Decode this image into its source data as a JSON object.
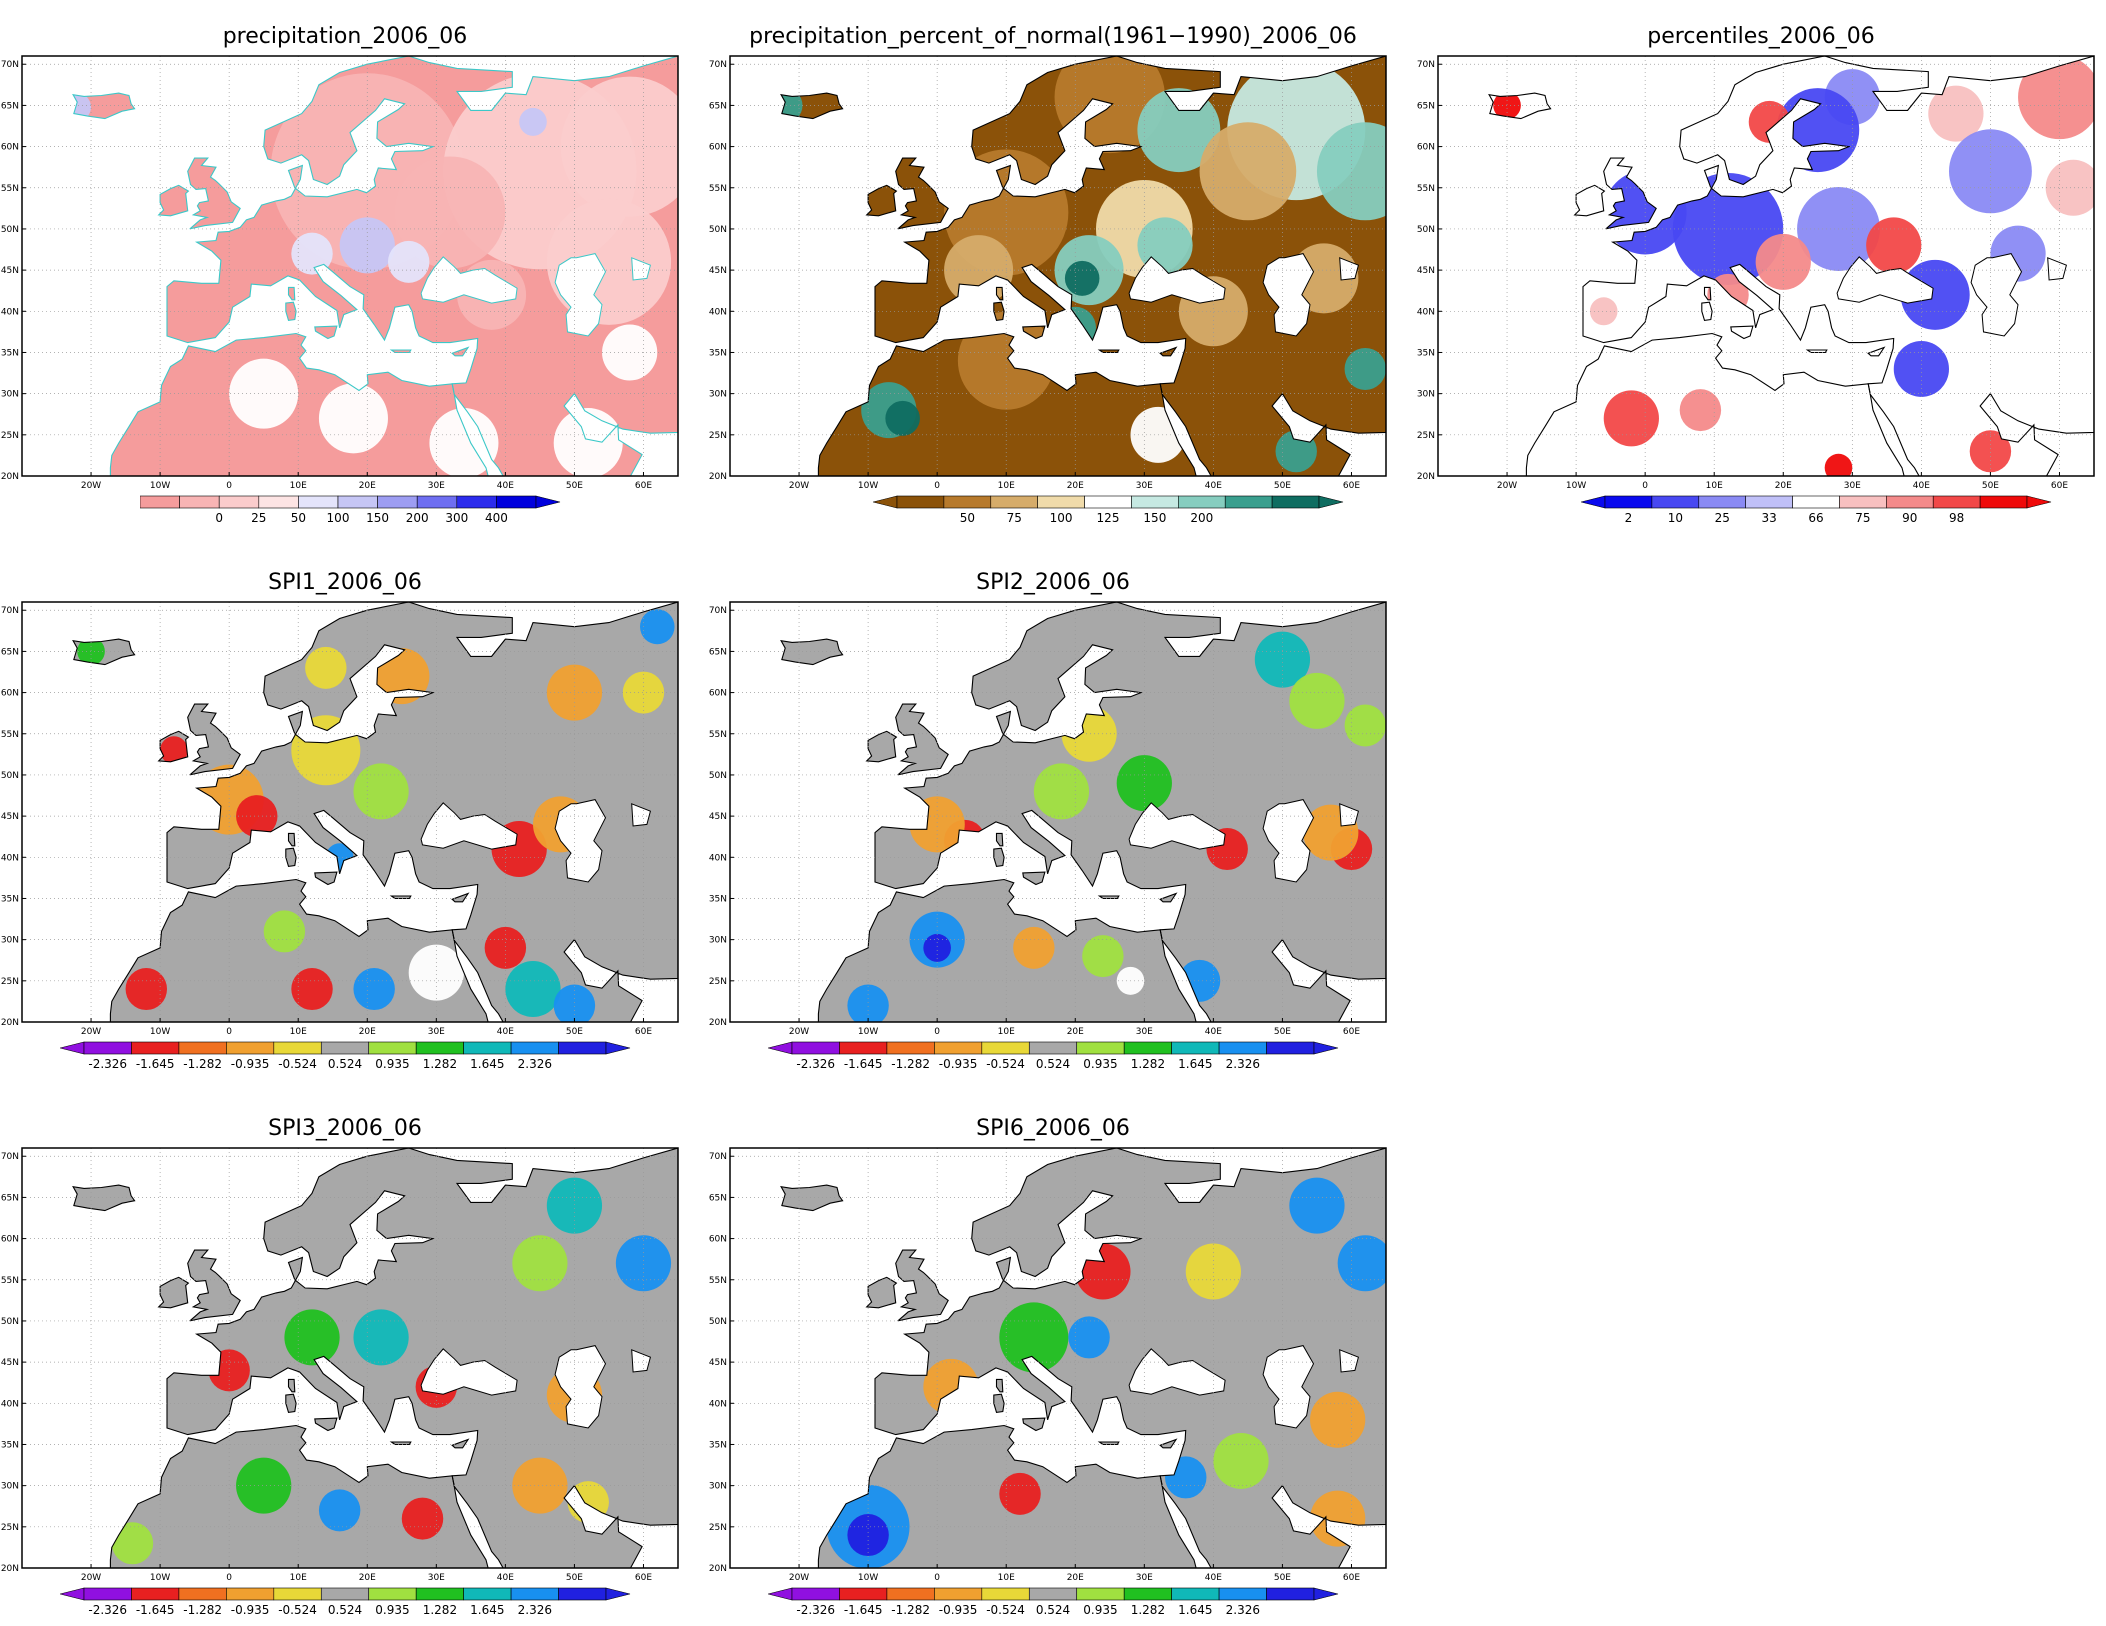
{
  "map_extent": {
    "lon": [
      -30,
      65
    ],
    "lat": [
      20,
      71
    ]
  },
  "lat_ticks": [
    "20N",
    "25N",
    "30N",
    "35N",
    "40N",
    "45N",
    "50N",
    "55N",
    "60N",
    "65N",
    "70N"
  ],
  "lon_ticks": [
    "20W",
    "10W",
    "0",
    "10E",
    "20E",
    "30E",
    "40E",
    "50E",
    "60E"
  ],
  "scales": {
    "precip": {
      "colors": [
        "#f59c9c",
        "#f8b4b4",
        "#fbcccc",
        "#fde4e4",
        "#e4e4fb",
        "#c6c6f5",
        "#9d9df2",
        "#6e6ef1",
        "#2c2ced",
        "#0000dd"
      ],
      "labels": [
        "0",
        "25",
        "50",
        "100",
        "150",
        "200",
        "300",
        "400"
      ],
      "left_arrow": false,
      "right_arrow": true
    },
    "pct": {
      "colors": [
        "#8b5209",
        "#b77a2c",
        "#d6ac6a",
        "#f0dbaa",
        "#ffffff",
        "#c6e9e2",
        "#86cdbf",
        "#3a9f8e",
        "#0f6d61"
      ],
      "labels": [
        "50",
        "75",
        "100",
        "125",
        "150",
        "200"
      ],
      "left_arrow": true,
      "right_arrow": true
    },
    "perc": {
      "colors": [
        "#0a0aef",
        "#4848f2",
        "#8a8af4",
        "#c0c0f8",
        "#ffffff",
        "#f8c0c0",
        "#f48a8a",
        "#f24848",
        "#ef0a0a"
      ],
      "labels": [
        "2",
        "10",
        "25",
        "33",
        "66",
        "75",
        "90",
        "98"
      ],
      "left_arrow": true,
      "right_arrow": true
    },
    "spi": {
      "colors": [
        "#9010e0",
        "#e82020",
        "#f07020",
        "#f0a030",
        "#e8d838",
        "#a8a8a8",
        "#a0e040",
        "#20c020",
        "#10b8b8",
        "#1890f0",
        "#2020e0"
      ],
      "labels": [
        "-2.326",
        "-1.645",
        "-1.282",
        "-0.935",
        "-0.524",
        "0.524",
        "0.935",
        "1.282",
        "1.645",
        "2.326"
      ],
      "left_arrow": true,
      "right_arrow": true
    }
  },
  "panels": [
    {
      "id": "precip",
      "title": "precipitation_2006_06",
      "scale": "precip",
      "coast": "#3cc8c8",
      "land": "#f59c9c",
      "blobs": [
        {
          "lon": 20,
          "lat": 57,
          "r": 14,
          "c": "#f8b4b4"
        },
        {
          "lon": 45,
          "lat": 57,
          "r": 14,
          "c": "#fbcccc"
        },
        {
          "lon": 58,
          "lat": 60,
          "r": 10,
          "c": "#fbcccc"
        },
        {
          "lon": 32,
          "lat": 52,
          "r": 8,
          "c": "#f8b4b4"
        },
        {
          "lon": 20,
          "lat": 48,
          "r": 4,
          "c": "#c6c6f5"
        },
        {
          "lon": 26,
          "lat": 46,
          "r": 3,
          "c": "#e4e4fb"
        },
        {
          "lon": 12,
          "lat": 47,
          "r": 3,
          "c": "#e4e4fb"
        },
        {
          "lon": 44,
          "lat": 63,
          "r": 2,
          "c": "#c6c6f5"
        },
        {
          "lon": 55,
          "lat": 46,
          "r": 9,
          "c": "#fbcccc"
        },
        {
          "lon": 38,
          "lat": 42,
          "r": 5,
          "c": "#f8b4b4"
        },
        {
          "lon": 5,
          "lat": 30,
          "r": 5,
          "c": "#ffffff"
        },
        {
          "lon": 18,
          "lat": 27,
          "r": 5,
          "c": "#ffffff"
        },
        {
          "lon": 34,
          "lat": 24,
          "r": 5,
          "c": "#ffffff"
        },
        {
          "lon": 52,
          "lat": 24,
          "r": 5,
          "c": "#ffffff"
        },
        {
          "lon": 58,
          "lat": 35,
          "r": 4,
          "c": "#ffffff"
        },
        {
          "lon": -22,
          "lat": 64.8,
          "r": 2,
          "c": "#c6c6f5"
        }
      ]
    },
    {
      "id": "pct",
      "title": "precipitation_percent_of_normal(1961−1990)_2006_06",
      "scale": "pct",
      "coast": "#000000",
      "land": "#8b5209",
      "blobs": [
        {
          "lon": 25,
          "lat": 66,
          "r": 8,
          "c": "#b77a2c"
        },
        {
          "lon": 35,
          "lat": 62,
          "r": 6,
          "c": "#86cdbf"
        },
        {
          "lon": 52,
          "lat": 62,
          "r": 10,
          "c": "#c6e9e2"
        },
        {
          "lon": 45,
          "lat": 57,
          "r": 7,
          "c": "#d6ac6a"
        },
        {
          "lon": 62,
          "lat": 57,
          "r": 7,
          "c": "#86cdbf"
        },
        {
          "lon": 10,
          "lat": 52,
          "r": 9,
          "c": "#b77a2c"
        },
        {
          "lon": 30,
          "lat": 50,
          "r": 7,
          "c": "#f0dbaa"
        },
        {
          "lon": 33,
          "lat": 48,
          "r": 4,
          "c": "#86cdbf"
        },
        {
          "lon": 22,
          "lat": 45,
          "r": 5,
          "c": "#86cdbf"
        },
        {
          "lon": 21,
          "lat": 44,
          "r": 2.5,
          "c": "#0f6d61"
        },
        {
          "lon": 6,
          "lat": 45,
          "r": 5,
          "c": "#d6ac6a"
        },
        {
          "lon": 40,
          "lat": 40,
          "r": 5,
          "c": "#d6ac6a"
        },
        {
          "lon": 20,
          "lat": 38,
          "r": 3,
          "c": "#3a9f8e"
        },
        {
          "lon": 56,
          "lat": 44,
          "r": 5,
          "c": "#d6ac6a"
        },
        {
          "lon": -7,
          "lat": 28,
          "r": 4,
          "c": "#3a9f8e"
        },
        {
          "lon": -5,
          "lat": 27,
          "r": 2.5,
          "c": "#0f6d61"
        },
        {
          "lon": 10,
          "lat": 34,
          "r": 7,
          "c": "#b77a2c"
        },
        {
          "lon": 52,
          "lat": 23,
          "r": 3,
          "c": "#3a9f8e"
        },
        {
          "lon": 62,
          "lat": 33,
          "r": 3,
          "c": "#3a9f8e"
        },
        {
          "lon": 32,
          "lat": 25,
          "r": 4,
          "c": "#ffffff"
        },
        {
          "lon": -22,
          "lat": 65,
          "r": 2.5,
          "c": "#3a9f8e"
        }
      ]
    },
    {
      "id": "perc",
      "title": "percentiles_2006_06",
      "scale": "perc",
      "coast": "#000000",
      "land": "#ffffff",
      "blobs": [
        {
          "lon": 30,
          "lat": 66,
          "r": 4,
          "c": "#8a8af4"
        },
        {
          "lon": 25,
          "lat": 62,
          "r": 6,
          "c": "#4848f2"
        },
        {
          "lon": 18,
          "lat": 63,
          "r": 3,
          "c": "#f24848"
        },
        {
          "lon": 60,
          "lat": 66,
          "r": 6,
          "c": "#f48a8a"
        },
        {
          "lon": 45,
          "lat": 64,
          "r": 4,
          "c": "#f8c0c0"
        },
        {
          "lon": 50,
          "lat": 57,
          "r": 6,
          "c": "#8a8af4"
        },
        {
          "lon": 62,
          "lat": 55,
          "r": 4,
          "c": "#f8c0c0"
        },
        {
          "lon": 0,
          "lat": 52,
          "r": 6,
          "c": "#4848f2"
        },
        {
          "lon": 12,
          "lat": 50,
          "r": 8,
          "c": "#4848f2"
        },
        {
          "lon": 28,
          "lat": 50,
          "r": 6,
          "c": "#8a8af4"
        },
        {
          "lon": 20,
          "lat": 46,
          "r": 4,
          "c": "#f48a8a"
        },
        {
          "lon": 36,
          "lat": 48,
          "r": 4,
          "c": "#f24848"
        },
        {
          "lon": 12,
          "lat": 42,
          "r": 3,
          "c": "#f48a8a"
        },
        {
          "lon": 42,
          "lat": 42,
          "r": 5,
          "c": "#4848f2"
        },
        {
          "lon": 54,
          "lat": 47,
          "r": 4,
          "c": "#8a8af4"
        },
        {
          "lon": 40,
          "lat": 33,
          "r": 4,
          "c": "#4848f2"
        },
        {
          "lon": -2,
          "lat": 27,
          "r": 4,
          "c": "#f24848"
        },
        {
          "lon": 8,
          "lat": 28,
          "r": 3,
          "c": "#f48a8a"
        },
        {
          "lon": 28,
          "lat": 21,
          "r": 2,
          "c": "#ef0a0a"
        },
        {
          "lon": 50,
          "lat": 23,
          "r": 3,
          "c": "#f24848"
        },
        {
          "lon": -20,
          "lat": 65,
          "r": 2,
          "c": "#ef0a0a"
        },
        {
          "lon": -6,
          "lat": 40,
          "r": 2,
          "c": "#f8c0c0"
        }
      ]
    },
    {
      "id": "spi1",
      "title": "SPI1_2006_06",
      "scale": "spi",
      "coast": "#000000",
      "land": "#a8a8a8",
      "blobs": [
        {
          "lon": 14,
          "lat": 63,
          "r": 3,
          "c": "#e8d838"
        },
        {
          "lon": 25,
          "lat": 62,
          "r": 4,
          "c": "#f0a030"
        },
        {
          "lon": 50,
          "lat": 60,
          "r": 4,
          "c": "#f0a030"
        },
        {
          "lon": 60,
          "lat": 60,
          "r": 3,
          "c": "#e8d838"
        },
        {
          "lon": 62,
          "lat": 68,
          "r": 2.5,
          "c": "#1890f0"
        },
        {
          "lon": -8,
          "lat": 53,
          "r": 2,
          "c": "#e82020"
        },
        {
          "lon": 0,
          "lat": 47,
          "r": 5,
          "c": "#f0a030"
        },
        {
          "lon": 4,
          "lat": 45,
          "r": 3,
          "c": "#e82020"
        },
        {
          "lon": 14,
          "lat": 53,
          "r": 5,
          "c": "#e8d838"
        },
        {
          "lon": 22,
          "lat": 48,
          "r": 4,
          "c": "#a0e040"
        },
        {
          "lon": 16,
          "lat": 40,
          "r": 2,
          "c": "#1890f0"
        },
        {
          "lon": 42,
          "lat": 41,
          "r": 4,
          "c": "#e82020"
        },
        {
          "lon": 48,
          "lat": 44,
          "r": 4,
          "c": "#f0a030"
        },
        {
          "lon": -12,
          "lat": 24,
          "r": 3,
          "c": "#e82020"
        },
        {
          "lon": 12,
          "lat": 24,
          "r": 3,
          "c": "#e82020"
        },
        {
          "lon": 21,
          "lat": 24,
          "r": 3,
          "c": "#1890f0"
        },
        {
          "lon": 40,
          "lat": 29,
          "r": 3,
          "c": "#e82020"
        },
        {
          "lon": 44,
          "lat": 24,
          "r": 4,
          "c": "#10b8b8"
        },
        {
          "lon": 50,
          "lat": 22,
          "r": 3,
          "c": "#1890f0"
        },
        {
          "lon": 8,
          "lat": 31,
          "r": 3,
          "c": "#a0e040"
        },
        {
          "lon": 30,
          "lat": 26,
          "r": 4,
          "c": "#ffffff"
        },
        {
          "lon": -20,
          "lat": 65,
          "r": 2,
          "c": "#20c020"
        }
      ]
    },
    {
      "id": "spi2",
      "title": "SPI2_2006_06",
      "scale": "spi",
      "coast": "#000000",
      "land": "#a8a8a8",
      "blobs": [
        {
          "lon": 50,
          "lat": 64,
          "r": 4,
          "c": "#10b8b8"
        },
        {
          "lon": 55,
          "lat": 59,
          "r": 4,
          "c": "#a0e040"
        },
        {
          "lon": 62,
          "lat": 56,
          "r": 3,
          "c": "#a0e040"
        },
        {
          "lon": 22,
          "lat": 55,
          "r": 4,
          "c": "#e8d838"
        },
        {
          "lon": 30,
          "lat": 49,
          "r": 4,
          "c": "#20c020"
        },
        {
          "lon": 18,
          "lat": 48,
          "r": 4,
          "c": "#a0e040"
        },
        {
          "lon": 4,
          "lat": 42,
          "r": 3,
          "c": "#e82020"
        },
        {
          "lon": 0,
          "lat": 44,
          "r": 4,
          "c": "#f0a030"
        },
        {
          "lon": 42,
          "lat": 41,
          "r": 3,
          "c": "#e82020"
        },
        {
          "lon": 60,
          "lat": 41,
          "r": 3,
          "c": "#e82020"
        },
        {
          "lon": 57,
          "lat": 43,
          "r": 4,
          "c": "#f0a030"
        },
        {
          "lon": 0,
          "lat": 30,
          "r": 4,
          "c": "#1890f0"
        },
        {
          "lon": 0,
          "lat": 29,
          "r": 2,
          "c": "#2020e0"
        },
        {
          "lon": 14,
          "lat": 29,
          "r": 3,
          "c": "#f0a030"
        },
        {
          "lon": 24,
          "lat": 28,
          "r": 3,
          "c": "#a0e040"
        },
        {
          "lon": 38,
          "lat": 25,
          "r": 3,
          "c": "#1890f0"
        },
        {
          "lon": -10,
          "lat": 22,
          "r": 3,
          "c": "#1890f0"
        },
        {
          "lon": 28,
          "lat": 25,
          "r": 2,
          "c": "#ffffff"
        }
      ]
    },
    {
      "id": "spi3",
      "title": "SPI3_2006_06",
      "scale": "spi",
      "coast": "#000000",
      "land": "#a8a8a8",
      "blobs": [
        {
          "lon": 50,
          "lat": 64,
          "r": 4,
          "c": "#10b8b8"
        },
        {
          "lon": 60,
          "lat": 57,
          "r": 4,
          "c": "#1890f0"
        },
        {
          "lon": 45,
          "lat": 57,
          "r": 4,
          "c": "#a0e040"
        },
        {
          "lon": 12,
          "lat": 48,
          "r": 4,
          "c": "#20c020"
        },
        {
          "lon": 22,
          "lat": 48,
          "r": 4,
          "c": "#10b8b8"
        },
        {
          "lon": 0,
          "lat": 44,
          "r": 3,
          "c": "#e82020"
        },
        {
          "lon": 30,
          "lat": 42,
          "r": 3,
          "c": "#e82020"
        },
        {
          "lon": 50,
          "lat": 41,
          "r": 4,
          "c": "#f0a030"
        },
        {
          "lon": 5,
          "lat": 30,
          "r": 4,
          "c": "#20c020"
        },
        {
          "lon": 16,
          "lat": 27,
          "r": 3,
          "c": "#1890f0"
        },
        {
          "lon": 28,
          "lat": 26,
          "r": 3,
          "c": "#e82020"
        },
        {
          "lon": 45,
          "lat": 30,
          "r": 4,
          "c": "#f0a030"
        },
        {
          "lon": 52,
          "lat": 28,
          "r": 3,
          "c": "#e8d838"
        },
        {
          "lon": -14,
          "lat": 23,
          "r": 3,
          "c": "#a0e040"
        }
      ]
    },
    {
      "id": "spi6",
      "title": "SPI6_2006_06",
      "scale": "spi",
      "coast": "#000000",
      "land": "#a8a8a8",
      "blobs": [
        {
          "lon": 24,
          "lat": 56,
          "r": 4,
          "c": "#e82020"
        },
        {
          "lon": 55,
          "lat": 64,
          "r": 4,
          "c": "#1890f0"
        },
        {
          "lon": 62,
          "lat": 57,
          "r": 4,
          "c": "#1890f0"
        },
        {
          "lon": 40,
          "lat": 56,
          "r": 4,
          "c": "#e8d838"
        },
        {
          "lon": 14,
          "lat": 48,
          "r": 5,
          "c": "#20c020"
        },
        {
          "lon": 22,
          "lat": 48,
          "r": 3,
          "c": "#1890f0"
        },
        {
          "lon": 2,
          "lat": 42,
          "r": 4,
          "c": "#f0a030"
        },
        {
          "lon": 58,
          "lat": 38,
          "r": 4,
          "c": "#f0a030"
        },
        {
          "lon": -10,
          "lat": 25,
          "r": 6,
          "c": "#1890f0"
        },
        {
          "lon": -10,
          "lat": 24,
          "r": 3,
          "c": "#2020e0"
        },
        {
          "lon": 12,
          "lat": 29,
          "r": 3,
          "c": "#e82020"
        },
        {
          "lon": 36,
          "lat": 31,
          "r": 3,
          "c": "#1890f0"
        },
        {
          "lon": 44,
          "lat": 33,
          "r": 4,
          "c": "#a0e040"
        },
        {
          "lon": 58,
          "lat": 26,
          "r": 4,
          "c": "#f0a030"
        }
      ]
    }
  ]
}
